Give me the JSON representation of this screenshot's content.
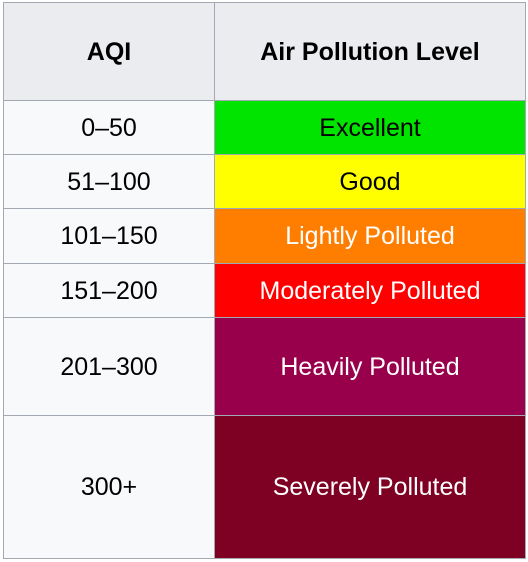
{
  "table": {
    "headers": {
      "aqi": "AQI",
      "level": "Air Pollution Level"
    },
    "rows": [
      {
        "range": "0–50",
        "level": "Excellent",
        "bg": "#00e400",
        "fg": "#000000"
      },
      {
        "range": "51–100",
        "level": "Good",
        "bg": "#ffff00",
        "fg": "#000000"
      },
      {
        "range": "101–150",
        "level": "Lightly Polluted",
        "bg": "#ff7e00",
        "fg": "#ffffff"
      },
      {
        "range": "151–200",
        "level": "Moderately Polluted",
        "bg": "#ff0000",
        "fg": "#ffffff"
      },
      {
        "range": "201–300",
        "level": "Heavily Polluted",
        "bg": "#99004c",
        "fg": "#ffffff"
      },
      {
        "range": "300+",
        "level": "Severely Polluted",
        "bg": "#7e0023",
        "fg": "#ffffff"
      }
    ]
  }
}
